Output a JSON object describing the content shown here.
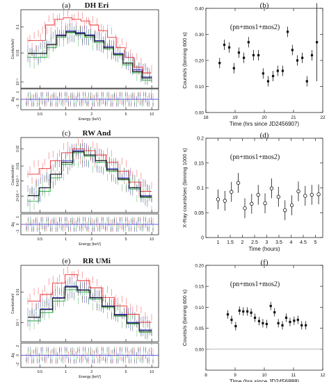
{
  "chart_data": [
    {
      "type": "line",
      "panel_letter": "(a)",
      "title": "DH Eri",
      "xlabel": "Energy (keV)",
      "ylabel": "Counts/s/keV",
      "ratio_label": "Δχ",
      "x_ticklabels": [
        "0.5",
        "1",
        "2",
        "5",
        "10"
      ],
      "y_ticklabels": [
        "0.1",
        "0.01",
        "10⁻³"
      ],
      "ratio_ticklabels": [
        "1",
        "0",
        "−1"
      ],
      "xscale": "log",
      "yscale": "log",
      "series": [
        {
          "color": "#e8262b",
          "values": [
            0.02,
            0.02,
            0.06,
            0.09,
            0.1,
            0.09,
            0.08,
            0.06,
            0.04,
            0.025,
            0.012,
            0.006,
            0.003,
            0.002
          ]
        },
        {
          "color": "#2b2bd9",
          "values": [
            0.008,
            0.008,
            0.015,
            0.03,
            0.04,
            0.035,
            0.03,
            0.02,
            0.013,
            0.008,
            0.004,
            0.0025,
            0.0015
          ]
        },
        {
          "color": "#21a33b",
          "values": [
            0.006,
            0.006,
            0.012,
            0.025,
            0.035,
            0.03,
            0.025,
            0.017,
            0.011,
            0.007,
            0.0035,
            0.002,
            0.0012
          ]
        },
        {
          "color": "#111111",
          "values": [
            0.008,
            0.008,
            0.015,
            0.028,
            0.037,
            0.033,
            0.028,
            0.019,
            0.012,
            0.0075,
            0.004,
            0.0022,
            0.0014
          ]
        }
      ]
    },
    {
      "type": "scatter",
      "panel_letter": "(b)",
      "annotation": "(pn+mos1+mos2)",
      "xlabel": "Time (hrs since JD2456907)",
      "ylabel": "Counts/s (binning 600 s)",
      "xlim": [
        18,
        22
      ],
      "ylim": [
        0,
        0.4
      ],
      "x_ticks": [
        18,
        19,
        20,
        21,
        22
      ],
      "y_ticks": [
        0,
        0.1,
        0.2,
        0.3,
        0.4
      ],
      "x_ticklabels": [
        "18",
        "19",
        "20",
        "21",
        "22"
      ],
      "y_ticklabels": [
        "0.00",
        "0.10",
        "0.20",
        "0.30",
        "0.40"
      ],
      "marker": "filled",
      "points": [
        {
          "x": 18.47,
          "y": 0.19,
          "err": 0.02
        },
        {
          "x": 18.63,
          "y": 0.26,
          "err": 0.02
        },
        {
          "x": 18.8,
          "y": 0.25,
          "err": 0.02
        },
        {
          "x": 18.96,
          "y": 0.17,
          "err": 0.02
        },
        {
          "x": 19.13,
          "y": 0.23,
          "err": 0.02
        },
        {
          "x": 19.3,
          "y": 0.21,
          "err": 0.02
        },
        {
          "x": 19.46,
          "y": 0.27,
          "err": 0.02
        },
        {
          "x": 19.63,
          "y": 0.22,
          "err": 0.02
        },
        {
          "x": 19.8,
          "y": 0.22,
          "err": 0.02
        },
        {
          "x": 19.96,
          "y": 0.15,
          "err": 0.02
        },
        {
          "x": 20.13,
          "y": 0.12,
          "err": 0.02
        },
        {
          "x": 20.3,
          "y": 0.14,
          "err": 0.02
        },
        {
          "x": 20.46,
          "y": 0.16,
          "err": 0.02
        },
        {
          "x": 20.63,
          "y": 0.16,
          "err": 0.02
        },
        {
          "x": 20.8,
          "y": 0.31,
          "err": 0.02
        },
        {
          "x": 20.96,
          "y": 0.24,
          "err": 0.02
        },
        {
          "x": 21.13,
          "y": 0.2,
          "err": 0.02
        },
        {
          "x": 21.3,
          "y": 0.21,
          "err": 0.02
        },
        {
          "x": 21.46,
          "y": 0.12,
          "err": 0.02
        },
        {
          "x": 21.63,
          "y": 0.22,
          "err": 0.02
        },
        {
          "x": 21.8,
          "y": 0.27,
          "err": 0.15
        }
      ]
    },
    {
      "type": "line",
      "panel_letter": "(c)",
      "title": "RW And",
      "xlabel": "Energy [keV]",
      "ylabel": "Counts/s/keV",
      "ratio_label": "Δχ",
      "x_ticklabels": [
        "0.5",
        "1",
        "2",
        "5",
        "10"
      ],
      "y_ticklabels": [
        "0.02",
        "0.01",
        "5×10⁻³",
        "2×10⁻³"
      ],
      "ratio_ticklabels": [
        "1",
        "0",
        "−1"
      ],
      "xscale": "log",
      "yscale": "log",
      "series": [
        {
          "color": "#e8262b",
          "values": [
            0.006,
            0.008,
            0.012,
            0.018,
            0.022,
            0.02,
            0.016,
            0.011,
            0.007,
            0.004,
            0.0025
          ]
        },
        {
          "color": "#2b2bd9",
          "values": [
            0.002,
            0.003,
            0.006,
            0.012,
            0.02,
            0.016,
            0.012,
            0.008,
            0.005,
            0.003,
            0.002
          ]
        },
        {
          "color": "#21a33b",
          "values": [
            0.0015,
            0.0025,
            0.005,
            0.01,
            0.018,
            0.015,
            0.011,
            0.007,
            0.0045,
            0.0028,
            0.0018
          ]
        },
        {
          "color": "#111111",
          "values": [
            0.002,
            0.003,
            0.006,
            0.011,
            0.019,
            0.016,
            0.012,
            0.0075,
            0.0047,
            0.003,
            0.0019
          ]
        }
      ]
    },
    {
      "type": "scatter",
      "panel_letter": "(d)",
      "annotation": "(pn+mos1+mos2)",
      "xlabel": "Time (hours)",
      "ylabel": "X-Ray counts/sec (binning 1000 s)",
      "xlim": [
        0.5,
        5.3
      ],
      "ylim": [
        0,
        0.2
      ],
      "x_ticks": [
        1,
        1.5,
        2,
        2.5,
        3,
        3.5,
        4,
        4.5,
        5
      ],
      "y_ticks": [
        0,
        0.05,
        0.1,
        0.15,
        0.2
      ],
      "x_ticklabels": [
        "1",
        "1.5",
        "2",
        "2.5",
        "3",
        "3.5",
        "4",
        "4.5",
        "5"
      ],
      "y_ticklabels": [
        "0",
        "0.05",
        "0.1",
        "0.15",
        "0.2"
      ],
      "marker": "open",
      "points": [
        {
          "x": 1.0,
          "y": 0.077,
          "err": 0.02
        },
        {
          "x": 1.28,
          "y": 0.074,
          "err": 0.02
        },
        {
          "x": 1.55,
          "y": 0.092,
          "err": 0.02
        },
        {
          "x": 1.83,
          "y": 0.11,
          "err": 0.02
        },
        {
          "x": 2.1,
          "y": 0.059,
          "err": 0.02
        },
        {
          "x": 2.38,
          "y": 0.068,
          "err": 0.02
        },
        {
          "x": 2.65,
          "y": 0.086,
          "err": 0.02
        },
        {
          "x": 2.93,
          "y": 0.069,
          "err": 0.02
        },
        {
          "x": 3.2,
          "y": 0.099,
          "err": 0.02
        },
        {
          "x": 3.48,
          "y": 0.082,
          "err": 0.02
        },
        {
          "x": 3.75,
          "y": 0.055,
          "err": 0.02
        },
        {
          "x": 4.03,
          "y": 0.065,
          "err": 0.02
        },
        {
          "x": 4.3,
          "y": 0.093,
          "err": 0.02
        },
        {
          "x": 4.58,
          "y": 0.084,
          "err": 0.02
        },
        {
          "x": 4.85,
          "y": 0.086,
          "err": 0.02
        },
        {
          "x": 5.13,
          "y": 0.087,
          "err": 0.02
        }
      ]
    },
    {
      "type": "line",
      "panel_letter": "(e)",
      "title": "RR UMi",
      "xlabel": "Energy [keV]",
      "ylabel": "Counts/s/keV",
      "ratio_label": "Δχ",
      "x_ticklabels": [
        "0.5",
        "1",
        "2",
        "5",
        "10"
      ],
      "y_ticklabels": [
        "0.01",
        "10⁻³"
      ],
      "ratio_ticklabels": [
        "2",
        "0",
        "−2"
      ],
      "xscale": "log",
      "yscale": "log",
      "series": [
        {
          "color": "#e8262b",
          "values": [
            0.004,
            0.006,
            0.012,
            0.02,
            0.014,
            0.009,
            0.005,
            0.003,
            0.0018,
            0.0011
          ]
        },
        {
          "color": "#2b2bd9",
          "values": [
            0.0015,
            0.0025,
            0.005,
            0.01,
            0.008,
            0.005,
            0.003,
            0.0018,
            0.0011,
            0.0007
          ]
        },
        {
          "color": "#21a33b",
          "values": [
            0.0012,
            0.002,
            0.004,
            0.008,
            0.007,
            0.0045,
            0.0027,
            0.0016,
            0.001,
            0.0006
          ]
        },
        {
          "color": "#111111",
          "values": [
            0.0015,
            0.0024,
            0.0048,
            0.0095,
            0.0078,
            0.0049,
            0.0029,
            0.0017,
            0.00105,
            0.00065
          ]
        }
      ]
    },
    {
      "type": "scatter",
      "panel_letter": "(f)",
      "annotation": "(pn+mos1+mos2)",
      "xlabel": "Time (hrs since JD2456888)",
      "ylabel": "Counts/s (binning 600 s)",
      "xlim": [
        8,
        12
      ],
      "ylim": [
        -0.05,
        0.2
      ],
      "x_ticks": [
        8,
        9,
        10,
        11,
        12
      ],
      "y_ticks": [
        0,
        0.05,
        0.1,
        0.15,
        0.2
      ],
      "x_ticklabels": [
        "8",
        "9",
        "10",
        "11",
        "12"
      ],
      "y_ticklabels": [
        "0.00",
        "0.05",
        "0.10",
        "0.15",
        "0.20"
      ],
      "zero_line": true,
      "marker": "filled",
      "points": [
        {
          "x": 8.75,
          "y": 0.083,
          "err": 0.01
        },
        {
          "x": 8.88,
          "y": 0.07,
          "err": 0.01
        },
        {
          "x": 9.02,
          "y": 0.055,
          "err": 0.01
        },
        {
          "x": 9.15,
          "y": 0.092,
          "err": 0.01
        },
        {
          "x": 9.28,
          "y": 0.09,
          "err": 0.01
        },
        {
          "x": 9.42,
          "y": 0.09,
          "err": 0.01
        },
        {
          "x": 9.55,
          "y": 0.087,
          "err": 0.01
        },
        {
          "x": 9.68,
          "y": 0.075,
          "err": 0.01
        },
        {
          "x": 9.82,
          "y": 0.067,
          "err": 0.01
        },
        {
          "x": 9.95,
          "y": 0.062,
          "err": 0.01
        },
        {
          "x": 10.08,
          "y": 0.06,
          "err": 0.01
        },
        {
          "x": 10.22,
          "y": 0.103,
          "err": 0.01
        },
        {
          "x": 10.35,
          "y": 0.088,
          "err": 0.01
        },
        {
          "x": 10.48,
          "y": 0.062,
          "err": 0.01
        },
        {
          "x": 10.62,
          "y": 0.057,
          "err": 0.01
        },
        {
          "x": 10.75,
          "y": 0.075,
          "err": 0.01
        },
        {
          "x": 10.88,
          "y": 0.065,
          "err": 0.01
        },
        {
          "x": 11.02,
          "y": 0.068,
          "err": 0.01
        },
        {
          "x": 11.15,
          "y": 0.07,
          "err": 0.01
        },
        {
          "x": 11.28,
          "y": 0.057,
          "err": 0.01
        },
        {
          "x": 11.42,
          "y": 0.057,
          "err": 0.01
        }
      ]
    }
  ]
}
